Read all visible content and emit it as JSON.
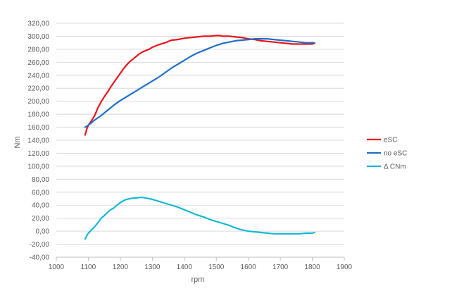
{
  "chart_data": {
    "type": "line",
    "title": "",
    "xlabel": "rpm",
    "ylabel": "Nm",
    "xlim": [
      1000,
      1900
    ],
    "ylim": [
      -40,
      320
    ],
    "x_ticks": [
      1000,
      1100,
      1200,
      1300,
      1400,
      1500,
      1600,
      1700,
      1800,
      1900
    ],
    "x_tick_labels": [
      "1000",
      "1100",
      "1200",
      "1300",
      "1400",
      "1500",
      "1600",
      "1700",
      "1800",
      "1900"
    ],
    "y_ticks": [
      -40,
      -20,
      0,
      20,
      40,
      60,
      80,
      100,
      120,
      140,
      160,
      180,
      200,
      220,
      240,
      260,
      280,
      300,
      320
    ],
    "y_tick_labels": [
      "-40,00",
      "-20,00",
      "0,00",
      "20,00",
      "40,00",
      "60,00",
      "80,00",
      "100,00",
      "120,00",
      "140,00",
      "160,00",
      "180,00",
      "200,00",
      "220,00",
      "240,00",
      "260,00",
      "280,00",
      "300,00",
      "320,00"
    ],
    "grid": true,
    "legend_position": "right",
    "series": [
      {
        "name": "eSC",
        "color": "#e8151c",
        "x": [
          1090,
          1095,
          1100,
          1110,
          1120,
          1130,
          1140,
          1150,
          1160,
          1170,
          1180,
          1190,
          1200,
          1210,
          1220,
          1230,
          1240,
          1250,
          1260,
          1270,
          1280,
          1290,
          1300,
          1320,
          1340,
          1360,
          1380,
          1400,
          1420,
          1440,
          1460,
          1480,
          1500,
          1510,
          1520,
          1540,
          1560,
          1580,
          1600,
          1620,
          1640,
          1660,
          1680,
          1700,
          1720,
          1740,
          1760,
          1780,
          1800,
          1807
        ],
        "values": [
          148,
          157,
          163,
          170,
          178,
          190,
          199,
          207,
          214,
          222,
          229,
          236,
          243,
          250,
          256,
          261,
          265,
          269,
          273,
          276,
          278,
          280,
          283,
          287,
          290,
          294,
          295,
          297,
          298,
          299,
          300,
          300,
          301,
          301,
          300,
          300,
          299,
          298,
          296,
          295,
          293,
          292,
          291,
          290,
          289,
          288,
          288,
          288,
          288,
          289
        ]
      },
      {
        "name": "no eSC",
        "color": "#1f6fc6",
        "x": [
          1090,
          1100,
          1110,
          1120,
          1140,
          1160,
          1180,
          1200,
          1220,
          1240,
          1260,
          1280,
          1300,
          1320,
          1340,
          1360,
          1380,
          1400,
          1420,
          1440,
          1460,
          1480,
          1500,
          1520,
          1540,
          1560,
          1580,
          1600,
          1620,
          1640,
          1660,
          1680,
          1700,
          1720,
          1740,
          1760,
          1780,
          1800,
          1807
        ],
        "values": [
          160,
          163,
          167,
          171,
          178,
          186,
          194,
          201,
          207,
          213,
          219,
          225,
          231,
          237,
          244,
          251,
          257,
          263,
          269,
          274,
          278,
          282,
          286,
          289,
          291,
          293,
          294,
          295,
          296,
          296,
          296,
          295,
          294,
          293,
          292,
          291,
          290,
          290,
          290
        ]
      },
      {
        "name": "Δ CNm",
        "color": "#17b8d4",
        "x": [
          1090,
          1095,
          1100,
          1110,
          1120,
          1130,
          1140,
          1150,
          1160,
          1170,
          1180,
          1190,
          1200,
          1210,
          1220,
          1230,
          1240,
          1250,
          1260,
          1270,
          1280,
          1290,
          1300,
          1320,
          1340,
          1360,
          1380,
          1400,
          1420,
          1440,
          1460,
          1480,
          1500,
          1520,
          1540,
          1560,
          1580,
          1600,
          1620,
          1640,
          1660,
          1680,
          1700,
          1720,
          1740,
          1760,
          1780,
          1800,
          1807
        ],
        "values": [
          -12,
          -7,
          -3,
          2,
          7,
          13,
          20,
          24,
          29,
          33,
          36,
          40,
          44,
          47,
          49,
          50,
          51,
          51,
          52,
          52,
          51,
          50,
          49,
          46,
          43,
          40,
          37,
          33,
          29,
          25,
          22,
          18,
          15,
          12,
          9,
          5,
          2,
          0,
          -1,
          -2,
          -3,
          -4,
          -4,
          -4,
          -4,
          -4,
          -3,
          -3,
          -2
        ]
      }
    ]
  }
}
